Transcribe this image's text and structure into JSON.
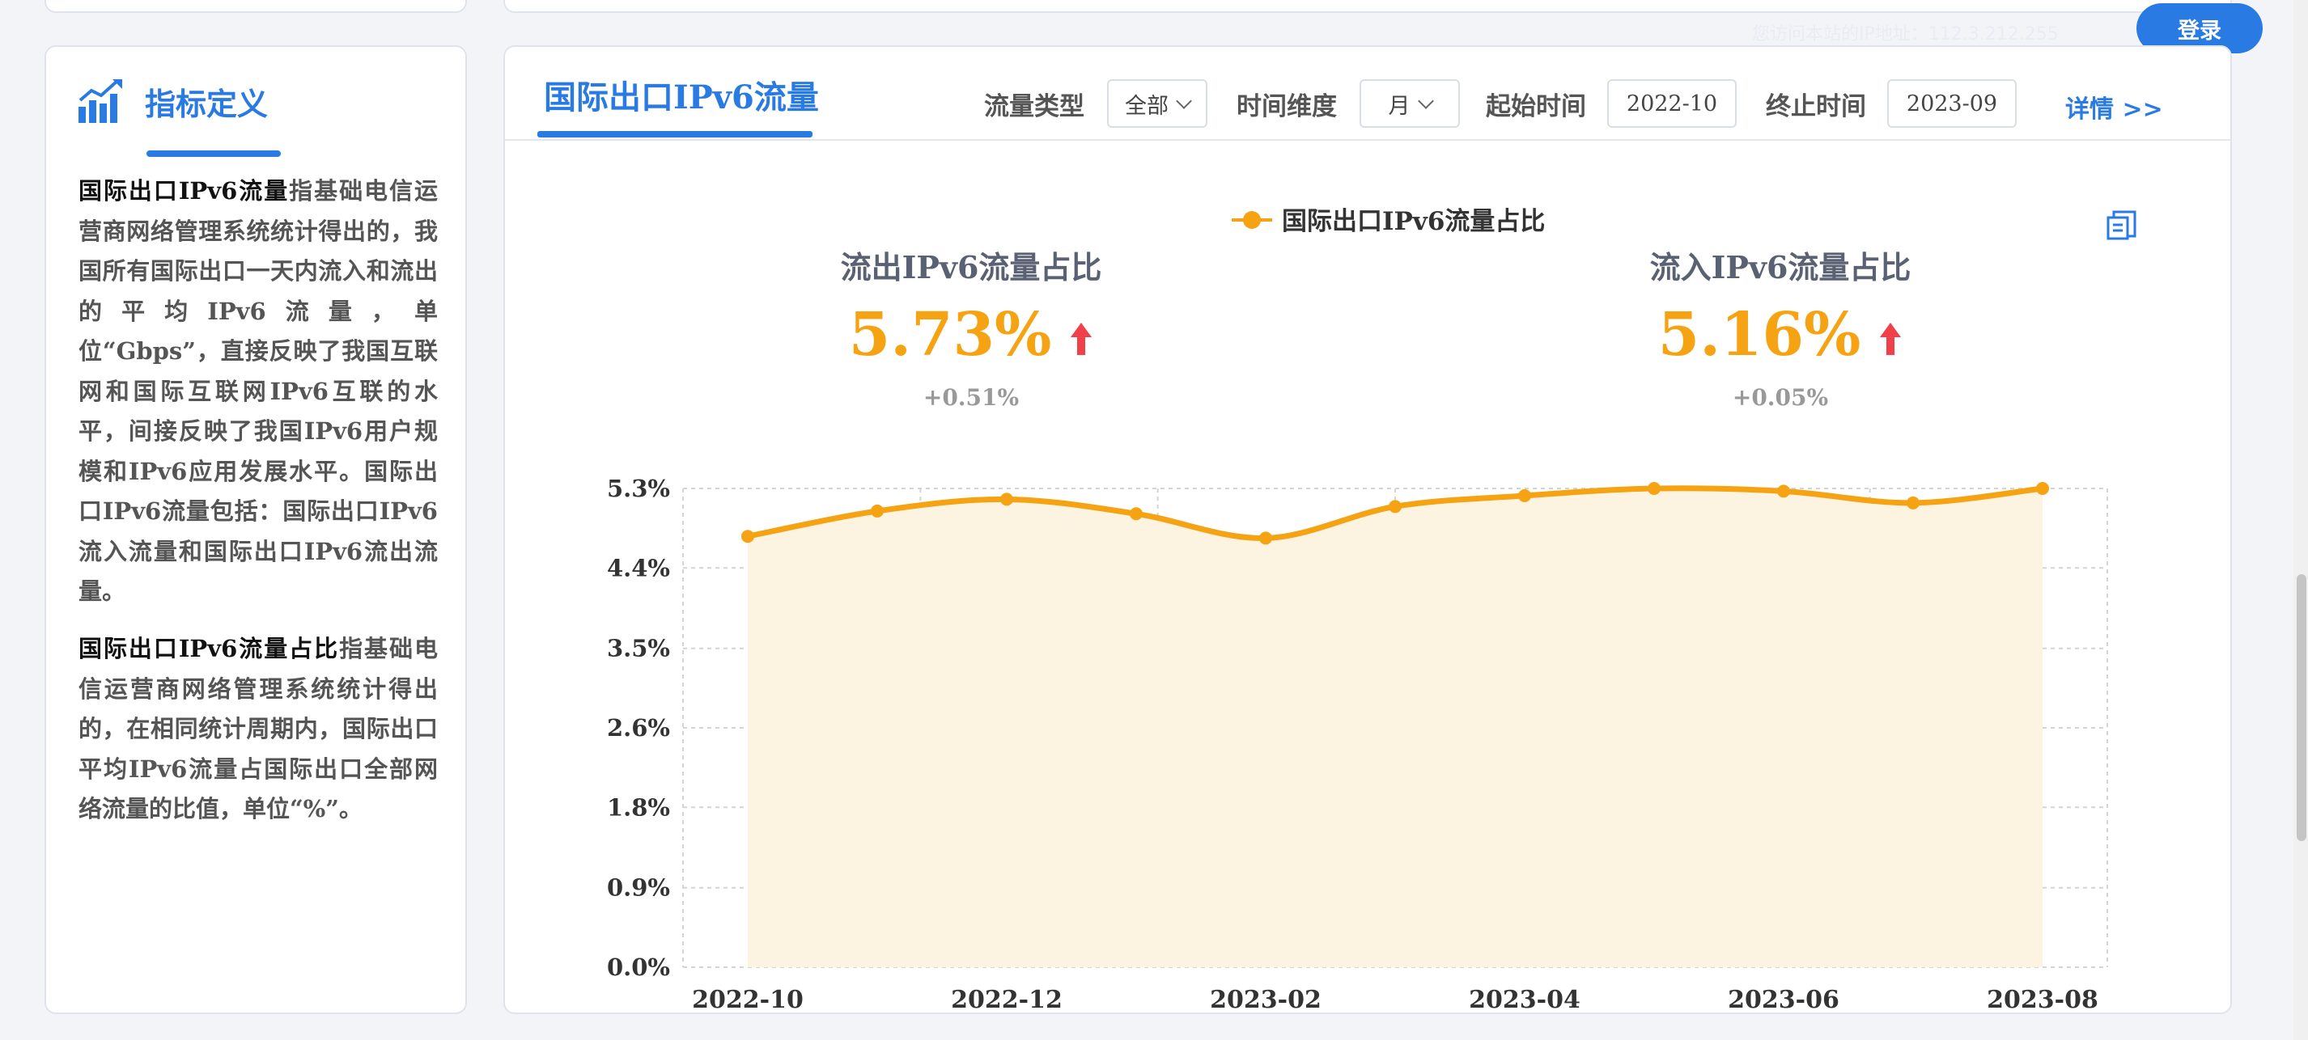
{
  "header": {
    "ip_notice": "您访问本站的IP地址：112.3.212.255",
    "login_label": "登录"
  },
  "indicator": {
    "title": "指标定义",
    "def1_term": "国际出口IPv6流量",
    "def1_text": "指基础电信运营商网络管理系统统计得出的，我国所有国际出口一天内流入和流出的平均IPv6流量，单位“Gbps”，直接反映了我国互联网和国际互联网IPv6互联的水平，间接反映了我国IPv6用户规模和IPv6应用发展水平。国际出口IPv6流量包括：国际出口IPv6流入流量和国际出口IPv6流出流量。",
    "def2_term": "国际出口IPv6流量占比",
    "def2_text": "指基础电信运营商网络管理系统统计得出的，在相同统计周期内，国际出口平均IPv6流量占国际出口全部网络流量的比值，单位“%”。"
  },
  "main": {
    "tab_title": "国际出口IPv6流量",
    "filters": {
      "flow_type_label": "流量类型",
      "flow_type_value": "全部",
      "time_dim_label": "时间维度",
      "time_dim_value": "月",
      "start_label": "起始时间",
      "start_value": "2022-10",
      "end_label": "终止时间",
      "end_value": "2023-09"
    },
    "details_label": "详情 >>",
    "kpis": {
      "out_title": "流出IPv6流量占比",
      "out_value": "5.73%",
      "out_change": "+0.51%",
      "in_title": "流入IPv6流量占比",
      "in_value": "5.16%",
      "in_change": "+0.05%"
    }
  },
  "colors": {
    "accent": "#2a7ae4",
    "series": "#f5a312",
    "area": "#fdf3e1",
    "arrow": "#f0414a"
  },
  "icons": [
    "chart-bars-icon",
    "copy-icon",
    "up-arrow-icon",
    "chevron-down-icon"
  ],
  "chart_data": {
    "type": "area",
    "title": "",
    "xlabel": "",
    "ylabel": "",
    "legend": "top-center",
    "grid": true,
    "x": [
      "2022-10",
      "2022-11",
      "2022-12",
      "2023-01",
      "2023-02",
      "2023-03",
      "2023-04",
      "2023-05",
      "2023-06",
      "2023-07",
      "2023-08"
    ],
    "x_tick_labels": [
      "2022-10",
      "2022-12",
      "2023-02",
      "2023-04",
      "2023-06",
      "2023-08"
    ],
    "y_ticks": [
      "0.0%",
      "0.9%",
      "1.8%",
      "2.6%",
      "3.5%",
      "4.4%",
      "5.3%"
    ],
    "y_tick_values": [
      0,
      0.88,
      1.77,
      2.65,
      3.53,
      4.42,
      5.3
    ],
    "ylim": [
      0,
      5.3
    ],
    "series": [
      {
        "name": "国际出口IPv6流量占比",
        "values": [
          4.77,
          5.05,
          5.18,
          5.02,
          4.75,
          5.1,
          5.22,
          5.3,
          5.27,
          5.14,
          5.3
        ]
      }
    ]
  }
}
